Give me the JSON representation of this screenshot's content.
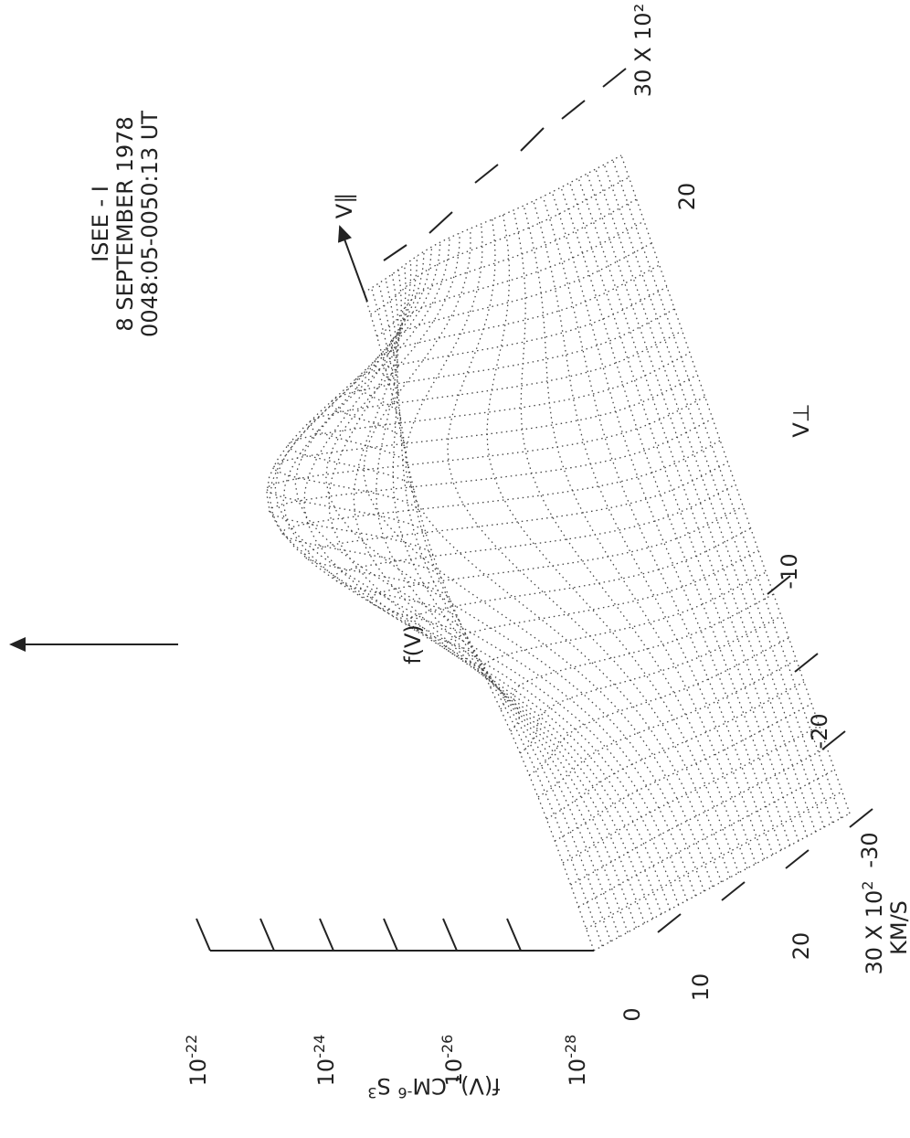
{
  "title": {
    "line1": "ISEE - I",
    "line2": "8 SEPTEMBER 1978",
    "line3": "0048:05-0050:13 UT"
  },
  "labels": {
    "f_arrow": "f(V)",
    "v_par": "V∥",
    "v_perp": "V⊥",
    "f_axis": {
      "base": "f(V), CM",
      "exp1": "-6",
      "mid": " S",
      "exp2": "3"
    }
  },
  "f_ticks": [
    {
      "base": "10",
      "exp": "-22"
    },
    {
      "base": "10",
      "exp": "-24"
    },
    {
      "base": "10",
      "exp": "-26"
    },
    {
      "base": "10",
      "exp": "-28"
    }
  ],
  "vperp_ticks": [
    "0",
    "10",
    "20",
    "-10",
    "-20",
    "-30"
  ],
  "vperp_unit": {
    "base": "30 X 10",
    "exp": "2",
    "unit": "KM/S"
  },
  "vpar_ticks": [
    "20",
    "30 X 10²"
  ]
}
